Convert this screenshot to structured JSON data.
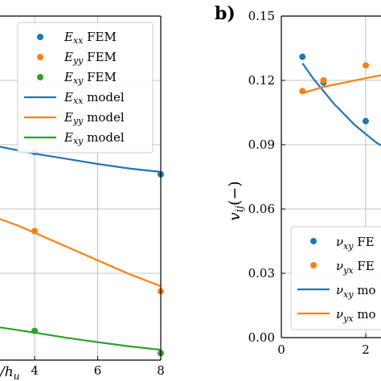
{
  "chart_data": [
    {
      "panel": "left",
      "type": "line",
      "xlabel": "/h_u",
      "x_ticks": [
        "4",
        "6",
        "8"
      ],
      "xlim": [
        2.9,
        8.0
      ],
      "ylim": [
        0,
        1
      ],
      "legend": {
        "placement": "top-right",
        "entries": [
          {
            "sym": "E",
            "sub": "xx",
            "suffix": "FEM",
            "kind": "marker",
            "color": "#1f77b4"
          },
          {
            "sym": "E",
            "sub": "yy",
            "suffix": "FEM",
            "kind": "marker",
            "color": "#ff7f0e"
          },
          {
            "sym": "E",
            "sub": "xy",
            "suffix": "FEM",
            "kind": "marker",
            "color": "#2ca02c"
          },
          {
            "sym": "E",
            "sub": "xx",
            "suffix": "model",
            "kind": "line",
            "color": "#1f77b4"
          },
          {
            "sym": "E",
            "sub": "yy",
            "suffix": "model",
            "kind": "line",
            "color": "#ff7f0e"
          },
          {
            "sym": "E",
            "sub": "xy",
            "suffix": "model",
            "kind": "line",
            "color": "#2ca02c"
          }
        ]
      },
      "series": [
        {
          "key": "Exx_fem",
          "kind": "marker",
          "color": "#1f77b4",
          "x": [
            4,
            8
          ],
          "y": [
            0.605,
            0.54
          ]
        },
        {
          "key": "Eyy_fem",
          "kind": "marker",
          "color": "#ff7f0e",
          "x": [
            4,
            8
          ],
          "y": [
            0.375,
            0.2
          ]
        },
        {
          "key": "Exy_fem",
          "kind": "marker",
          "color": "#2ca02c",
          "x": [
            4,
            8
          ],
          "y": [
            0.085,
            0.02
          ]
        },
        {
          "key": "Exx_model",
          "kind": "line",
          "color": "#1f77b4",
          "x": [
            2.9,
            4,
            5,
            6,
            7,
            8
          ],
          "y": [
            0.62,
            0.6,
            0.585,
            0.57,
            0.557,
            0.547
          ]
        },
        {
          "key": "Eyy_model",
          "kind": "line",
          "color": "#ff7f0e",
          "x": [
            2.9,
            3.5,
            4,
            5,
            6,
            7,
            8
          ],
          "y": [
            0.41,
            0.39,
            0.37,
            0.33,
            0.29,
            0.25,
            0.215
          ]
        },
        {
          "key": "Exy_model",
          "kind": "line",
          "color": "#2ca02c",
          "x": [
            2.9,
            4,
            5,
            6,
            7,
            8
          ],
          "y": [
            0.095,
            0.08,
            0.065,
            0.052,
            0.04,
            0.03
          ]
        }
      ]
    },
    {
      "panel": "right",
      "type": "line",
      "panel_label": "b)",
      "ylabel_sym": "v",
      "ylabel_sub": "ij",
      "ylabel_suffix": "(−)",
      "y_ticks": [
        "0.00",
        "0.03",
        "0.06",
        "0.09",
        "0.12",
        "0.15"
      ],
      "y_tick_values": [
        0,
        0.03,
        0.06,
        0.09,
        0.12,
        0.15
      ],
      "x_ticks": [
        "0",
        "2"
      ],
      "x_tick_values": [
        0,
        2
      ],
      "xlim": [
        0,
        2.5
      ],
      "ylim": [
        0,
        0.15
      ],
      "legend": {
        "placement": "bottom-right",
        "entries": [
          {
            "sym": "ν",
            "sub": "xy",
            "suffix": "FE",
            "kind": "marker",
            "color": "#1f77b4"
          },
          {
            "sym": "ν",
            "sub": "yx",
            "suffix": "FE",
            "kind": "marker",
            "color": "#ff7f0e"
          },
          {
            "sym": "ν",
            "sub": "xy",
            "suffix": "mo",
            "kind": "line",
            "color": "#1f77b4"
          },
          {
            "sym": "ν",
            "sub": "yx",
            "suffix": "mo",
            "kind": "line",
            "color": "#ff7f0e"
          }
        ]
      },
      "series": [
        {
          "key": "vxy_fem",
          "kind": "marker",
          "color": "#1f77b4",
          "x": [
            0.5,
            1,
            2
          ],
          "y": [
            0.131,
            0.119,
            0.101
          ]
        },
        {
          "key": "vyx_fem",
          "kind": "marker",
          "color": "#ff7f0e",
          "x": [
            0.5,
            1,
            2
          ],
          "y": [
            0.115,
            0.12,
            0.127
          ]
        },
        {
          "key": "vxy_model",
          "kind": "line",
          "color": "#1f77b4",
          "x": [
            0.5,
            0.75,
            1,
            1.25,
            1.5,
            1.75,
            2,
            2.25,
            2.5
          ],
          "y": [
            0.128,
            0.121,
            0.115,
            0.109,
            0.104,
            0.099,
            0.095,
            0.091,
            0.088
          ]
        },
        {
          "key": "vyx_model",
          "kind": "line",
          "color": "#ff7f0e",
          "x": [
            0.5,
            1,
            1.5,
            2,
            2.5
          ],
          "y": [
            0.114,
            0.117,
            0.119,
            0.121,
            0.123
          ]
        }
      ]
    }
  ]
}
